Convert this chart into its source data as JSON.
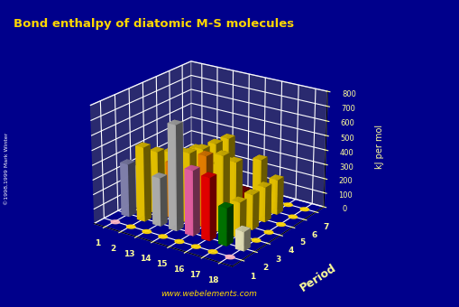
{
  "title": "Bond enthalpy of diatomic M-S molecules",
  "ylabel": "Period",
  "zlabel": "kJ per mol",
  "background_color": "#00008B",
  "title_color": "#FFD700",
  "website": "www.webelements.com",
  "copyright": "©1998,1999 Mark Winter",
  "groups": [
    1,
    2,
    13,
    14,
    15,
    16,
    17,
    18
  ],
  "periods": [
    1,
    2,
    3,
    4,
    5,
    6,
    7
  ],
  "zticks": [
    0,
    100,
    200,
    300,
    400,
    500,
    600,
    700,
    800
  ],
  "bar_data": [
    {
      "group": 1,
      "period": 1,
      "value": 0,
      "color": "#FFB6C1"
    },
    {
      "group": 1,
      "period": 2,
      "value": 363,
      "color": "#9090C0"
    },
    {
      "group": 1,
      "period": 3,
      "value": 290,
      "color": "#9090C0"
    },
    {
      "group": 1,
      "period": 4,
      "value": 260,
      "color": "#9090C0"
    },
    {
      "group": 1,
      "period": 5,
      "value": 240,
      "color": "#9090C0"
    },
    {
      "group": 1,
      "period": 6,
      "value": 220,
      "color": "#9090C0"
    },
    {
      "group": 1,
      "period": 7,
      "value": 0,
      "color": "#FFD700"
    },
    {
      "group": 2,
      "period": 1,
      "value": 0,
      "color": "#FFD700"
    },
    {
      "group": 2,
      "period": 2,
      "value": 508,
      "color": "#FFD700"
    },
    {
      "group": 2,
      "period": 3,
      "value": 430,
      "color": "#FFD700"
    },
    {
      "group": 2,
      "period": 4,
      "value": 380,
      "color": "#FFD700"
    },
    {
      "group": 2,
      "period": 5,
      "value": 330,
      "color": "#FFD700"
    },
    {
      "group": 2,
      "period": 6,
      "value": 310,
      "color": "#FFD700"
    },
    {
      "group": 2,
      "period": 7,
      "value": 0,
      "color": "#FFD700"
    },
    {
      "group": 13,
      "period": 1,
      "value": 0,
      "color": "#FFD700"
    },
    {
      "group": 13,
      "period": 2,
      "value": 330,
      "color": "#C0C0C0"
    },
    {
      "group": 13,
      "period": 3,
      "value": 380,
      "color": "#FF8C00"
    },
    {
      "group": 13,
      "period": 4,
      "value": 330,
      "color": "#FFD700"
    },
    {
      "group": 13,
      "period": 5,
      "value": 310,
      "color": "#FFD700"
    },
    {
      "group": 13,
      "period": 6,
      "value": 200,
      "color": "#FFD700"
    },
    {
      "group": 13,
      "period": 7,
      "value": 0,
      "color": "#FFD700"
    },
    {
      "group": 14,
      "period": 1,
      "value": 0,
      "color": "#FFD700"
    },
    {
      "group": 14,
      "period": 2,
      "value": 714,
      "color": "#C0C0C0"
    },
    {
      "group": 14,
      "period": 3,
      "value": 480,
      "color": "#FFD700"
    },
    {
      "group": 14,
      "period": 4,
      "value": 460,
      "color": "#FFD700"
    },
    {
      "group": 14,
      "period": 5,
      "value": 450,
      "color": "#FFD700"
    },
    {
      "group": 14,
      "period": 6,
      "value": 440,
      "color": "#FFD700"
    },
    {
      "group": 14,
      "period": 7,
      "value": 0,
      "color": "#FFD700"
    },
    {
      "group": 15,
      "period": 1,
      "value": 0,
      "color": "#FFD700"
    },
    {
      "group": 15,
      "period": 2,
      "value": 442,
      "color": "#FF69B4"
    },
    {
      "group": 15,
      "period": 3,
      "value": 490,
      "color": "#FF8C00"
    },
    {
      "group": 15,
      "period": 4,
      "value": 380,
      "color": "#FFD700"
    },
    {
      "group": 15,
      "period": 5,
      "value": 350,
      "color": "#FFD700"
    },
    {
      "group": 15,
      "period": 6,
      "value": 100,
      "color": "#8B0000"
    },
    {
      "group": 15,
      "period": 7,
      "value": 0,
      "color": "#FFD700"
    },
    {
      "group": 16,
      "period": 1,
      "value": 0,
      "color": "#FFD700"
    },
    {
      "group": 16,
      "period": 2,
      "value": 425,
      "color": "#FF0000"
    },
    {
      "group": 16,
      "period": 3,
      "value": 522,
      "color": "#FFD700"
    },
    {
      "group": 16,
      "period": 4,
      "value": 430,
      "color": "#FFD700"
    },
    {
      "group": 16,
      "period": 5,
      "value": 70,
      "color": "#9932CC"
    },
    {
      "group": 16,
      "period": 6,
      "value": 350,
      "color": "#FFD700"
    },
    {
      "group": 16,
      "period": 7,
      "value": 0,
      "color": "#FFD700"
    },
    {
      "group": 17,
      "period": 1,
      "value": 0,
      "color": "#FFD700"
    },
    {
      "group": 17,
      "period": 2,
      "value": 255,
      "color": "#008000"
    },
    {
      "group": 17,
      "period": 3,
      "value": 241,
      "color": "#FFD700"
    },
    {
      "group": 17,
      "period": 4,
      "value": 241,
      "color": "#FFD700"
    },
    {
      "group": 17,
      "period": 5,
      "value": 241,
      "color": "#FFD700"
    },
    {
      "group": 17,
      "period": 6,
      "value": 241,
      "color": "#FFD700"
    },
    {
      "group": 17,
      "period": 7,
      "value": 0,
      "color": "#FFD700"
    },
    {
      "group": 18,
      "period": 1,
      "value": 0,
      "color": "#FFB6C1"
    },
    {
      "group": 18,
      "period": 2,
      "value": 130,
      "color": "#FFFACD"
    },
    {
      "group": 18,
      "period": 3,
      "value": 0,
      "color": "#FFD700"
    },
    {
      "group": 18,
      "period": 4,
      "value": 0,
      "color": "#FFD700"
    },
    {
      "group": 18,
      "period": 5,
      "value": 0,
      "color": "#FFD700"
    },
    {
      "group": 18,
      "period": 6,
      "value": 0,
      "color": "#FFD700"
    },
    {
      "group": 18,
      "period": 7,
      "value": 0,
      "color": "#FFD700"
    }
  ]
}
